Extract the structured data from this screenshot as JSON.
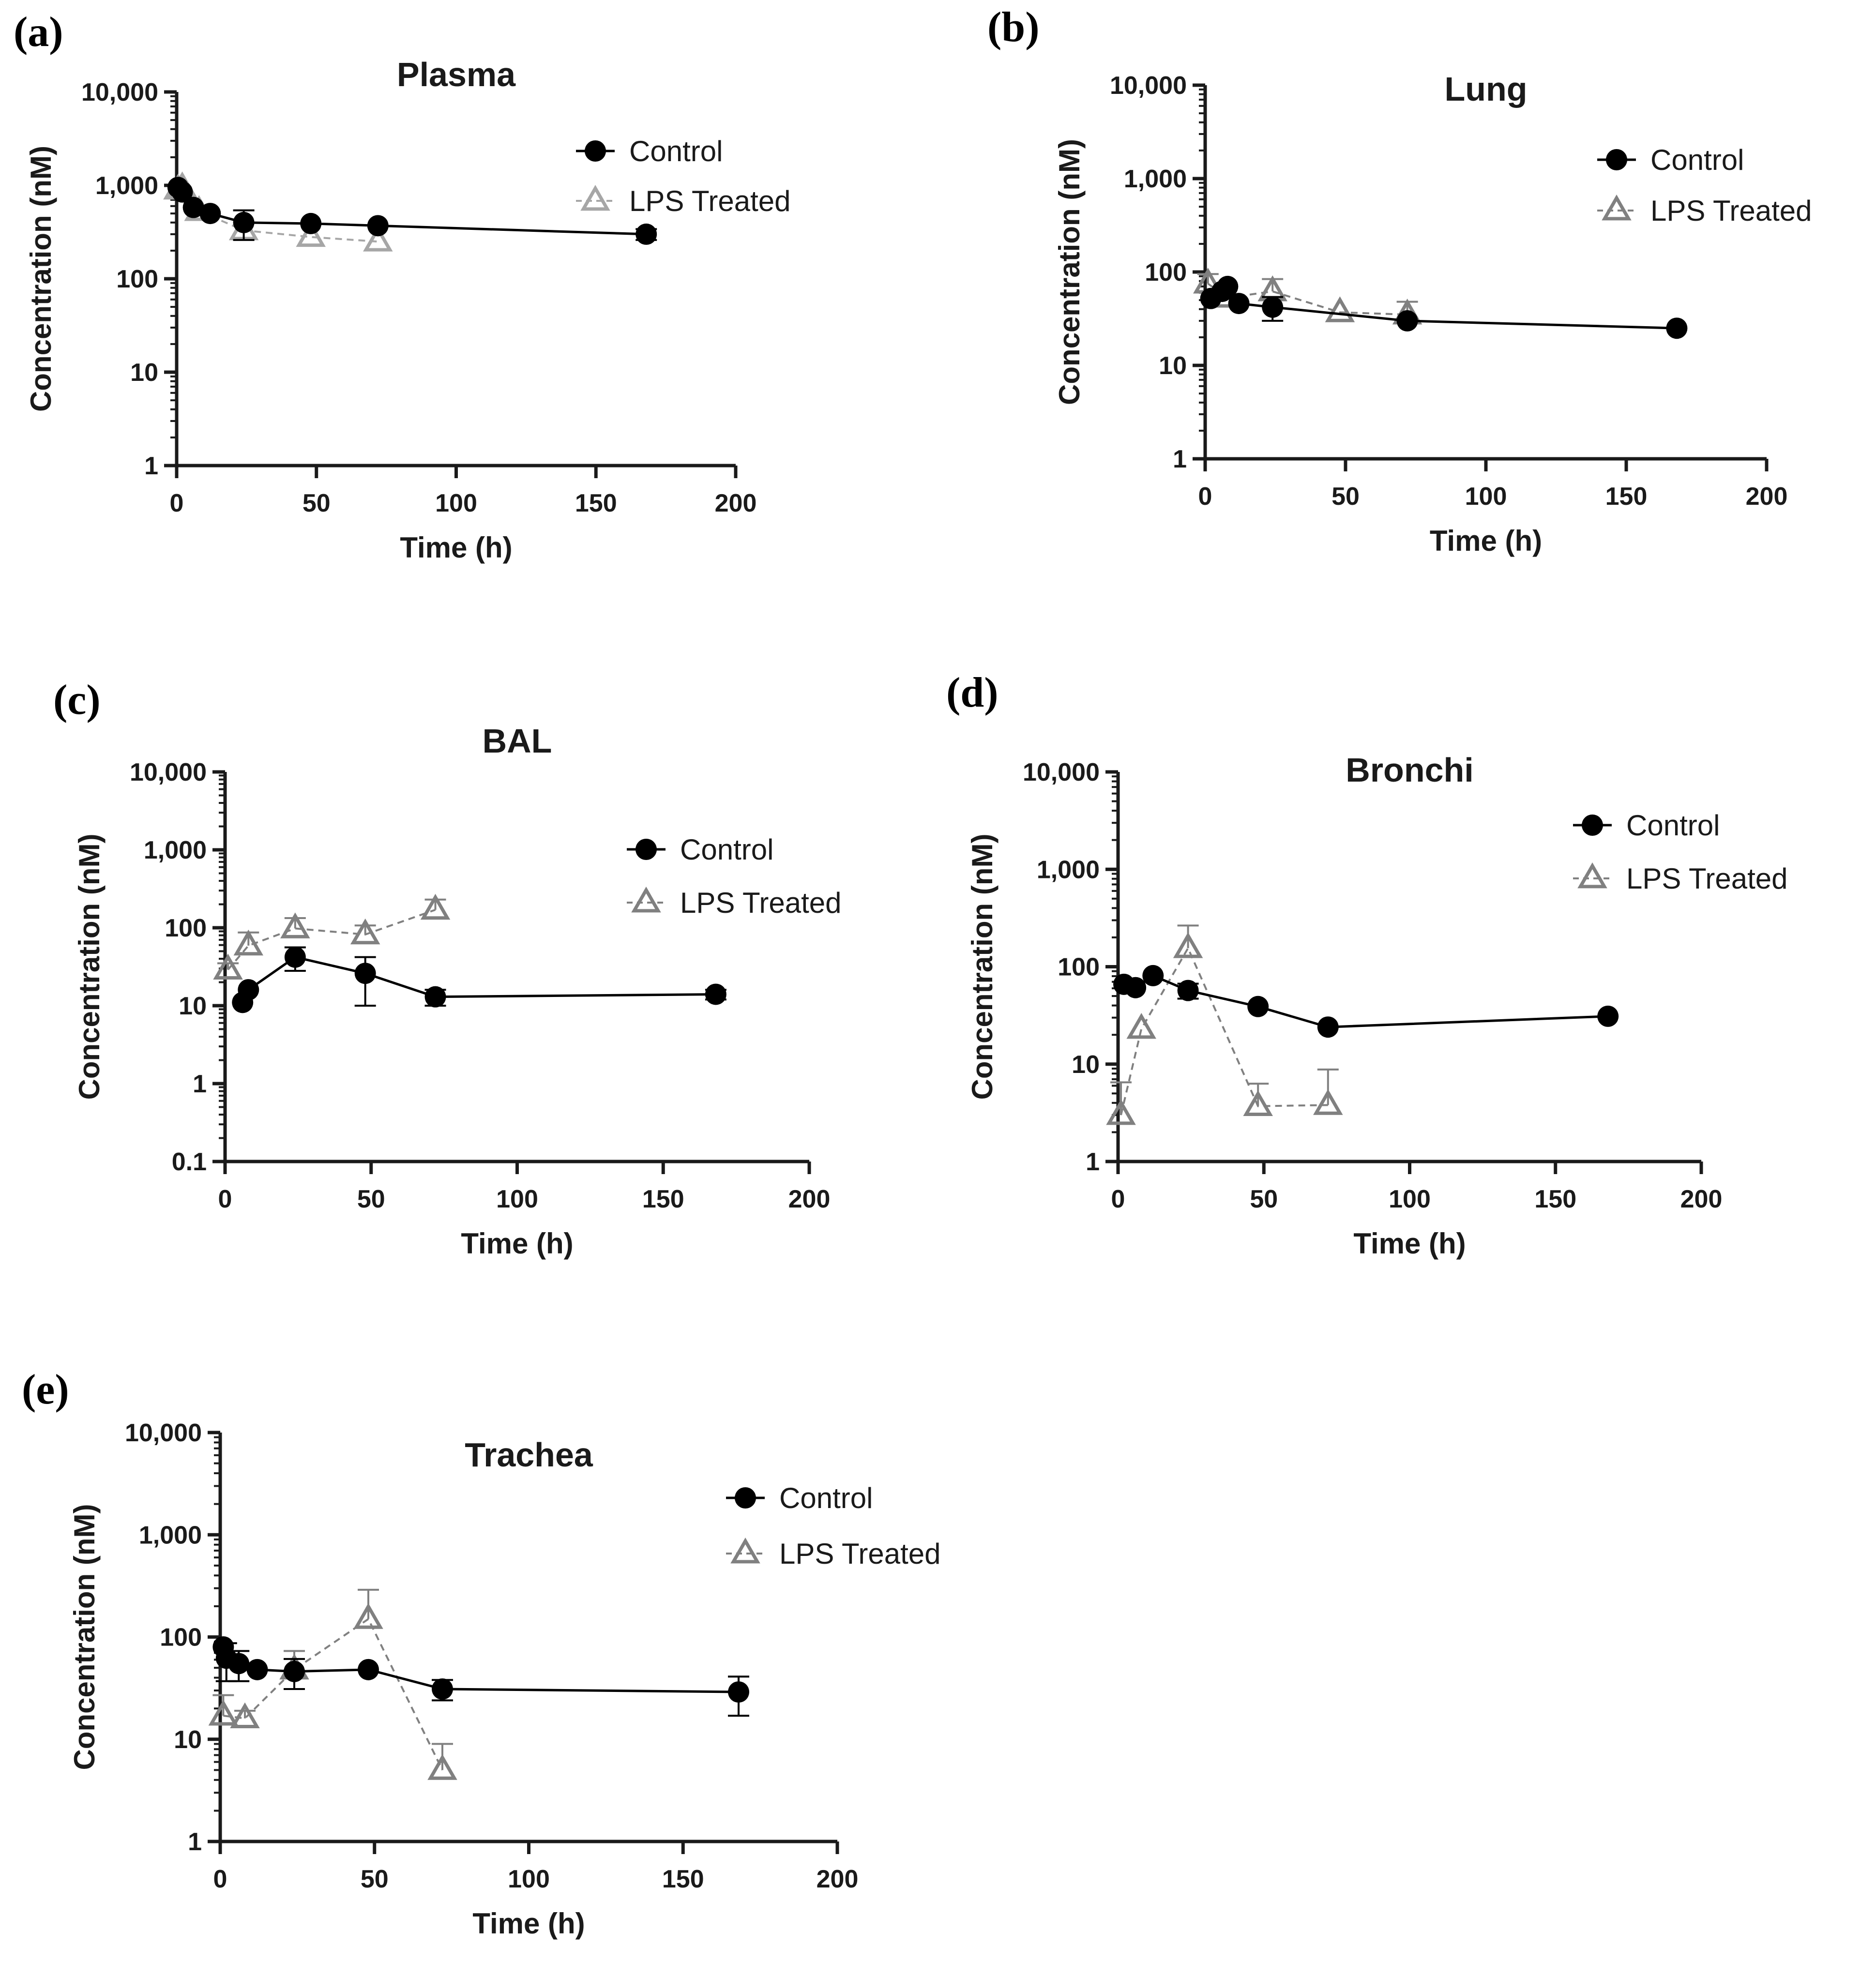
{
  "chart_data": [
    {
      "type": "line",
      "panel": "(a)",
      "title": "Plasma",
      "xlabel": "Time (h)",
      "ylabel": "Concentration (nM)",
      "xlim": [
        0,
        200
      ],
      "ylim": [
        1,
        10000
      ],
      "yscale": "log",
      "xticks": [
        0,
        50,
        100,
        150,
        200
      ],
      "yticks": [
        1,
        10,
        100,
        1000,
        10000
      ],
      "ytick_labels": [
        "1",
        "10",
        "100",
        "1,000",
        "10,000"
      ],
      "legend": "top-right",
      "series": [
        {
          "name": "Control",
          "color": "#000000",
          "marker": "circle",
          "line": "solid",
          "x": [
            0.5,
            2,
            6,
            12,
            24,
            48,
            72,
            168
          ],
          "y": [
            950,
            850,
            580,
            500,
            400,
            390,
            370,
            300
          ],
          "err": [
            0,
            0,
            0,
            0,
            140,
            0,
            0,
            40
          ]
        },
        {
          "name": "LPS Treated",
          "color": "#a6a6a6",
          "marker": "triangle",
          "line": "dashed",
          "x": [
            0.5,
            2,
            8,
            24,
            48,
            72
          ],
          "y": [
            900,
            950,
            530,
            330,
            280,
            250
          ],
          "err": [
            0,
            0,
            0,
            0,
            0,
            0
          ]
        }
      ]
    },
    {
      "type": "line",
      "panel": "(b)",
      "title": "Lung",
      "xlabel": "Time (h)",
      "ylabel": "Concentration (nM)",
      "xlim": [
        0,
        200
      ],
      "ylim": [
        1,
        10000
      ],
      "yscale": "log",
      "xticks": [
        0,
        50,
        100,
        150,
        200
      ],
      "yticks": [
        1,
        10,
        100,
        1000,
        10000
      ],
      "ytick_labels": [
        "1",
        "10",
        "100",
        "1,000",
        "10,000"
      ],
      "legend": "top-right",
      "series": [
        {
          "name": "Control",
          "color": "#000000",
          "marker": "circle",
          "line": "solid",
          "x": [
            2,
            6,
            8,
            12,
            24,
            72,
            168
          ],
          "y": [
            52,
            62,
            70,
            46,
            42,
            30,
            25
          ],
          "err": [
            0,
            0,
            0,
            0,
            12,
            0,
            0
          ]
        },
        {
          "name": "LPS Treated",
          "color": "#808080",
          "marker": "triangle",
          "line": "dashed",
          "x": [
            1,
            8,
            24,
            48,
            72
          ],
          "y": [
            75,
            53,
            62,
            37,
            35
          ],
          "err": [
            20,
            0,
            22,
            0,
            13
          ]
        }
      ]
    },
    {
      "type": "line",
      "panel": "(c)",
      "title": "BAL",
      "xlabel": "Time (h)",
      "ylabel": "Concentration (nM)",
      "xlim": [
        0,
        200
      ],
      "ylim": [
        0.1,
        10000
      ],
      "yscale": "log",
      "xticks": [
        0,
        50,
        100,
        150,
        200
      ],
      "yticks": [
        0.1,
        1,
        10,
        100,
        1000,
        10000
      ],
      "ytick_labels": [
        "0.1",
        "1",
        "10",
        "100",
        "1,000",
        "10,000"
      ],
      "legend": "top-right",
      "series": [
        {
          "name": "Control",
          "color": "#000000",
          "marker": "circle",
          "line": "solid",
          "x": [
            6,
            8,
            24,
            48,
            72,
            168
          ],
          "y": [
            11,
            16,
            42,
            26,
            13,
            14
          ],
          "err": [
            0,
            0,
            14,
            16,
            3,
            2
          ]
        },
        {
          "name": "LPS Treated",
          "color": "#808080",
          "marker": "triangle",
          "line": "dashed",
          "x": [
            1,
            8,
            24,
            48,
            72
          ],
          "y": [
            29,
            59,
            98,
            82,
            170
          ],
          "err": [
            6,
            28,
            35,
            25,
            60
          ]
        }
      ]
    },
    {
      "type": "line",
      "panel": "(d)",
      "title": "Bronchi",
      "xlabel": "Time (h)",
      "ylabel": "Concentration (nM)",
      "xlim": [
        0,
        200
      ],
      "ylim": [
        1,
        10000
      ],
      "yscale": "log",
      "xticks": [
        0,
        50,
        100,
        150,
        200
      ],
      "yticks": [
        1,
        10,
        100,
        1000,
        10000
      ],
      "ytick_labels": [
        "1",
        "10",
        "100",
        "1,000",
        "10,000"
      ],
      "legend": "top-right",
      "series": [
        {
          "name": "Control",
          "color": "#000000",
          "marker": "circle",
          "line": "solid",
          "x": [
            2,
            6,
            12,
            24,
            48,
            72,
            168
          ],
          "y": [
            66,
            61,
            81,
            57,
            39,
            24,
            31
          ],
          "err": [
            0,
            0,
            0,
            10,
            0,
            0,
            0
          ]
        },
        {
          "name": "LPS Treated",
          "color": "#808080",
          "marker": "triangle",
          "line": "dashed",
          "x": [
            1,
            8,
            24,
            48,
            72
          ],
          "y": [
            3,
            23,
            155,
            3.7,
            3.8
          ],
          "err": [
            3.5,
            0,
            110,
            2.6,
            5
          ]
        }
      ]
    },
    {
      "type": "line",
      "panel": "(e)",
      "title": "Trachea",
      "xlabel": "Time (h)",
      "ylabel": "Concentration (nM)",
      "xlim": [
        0,
        200
      ],
      "ylim": [
        1,
        10000
      ],
      "yscale": "log",
      "xticks": [
        0,
        50,
        100,
        150,
        200
      ],
      "yticks": [
        1,
        10,
        100,
        1000,
        10000
      ],
      "ytick_labels": [
        "1",
        "10",
        "100",
        "1,000",
        "10,000"
      ],
      "legend": "top-right",
      "series": [
        {
          "name": "Control",
          "color": "#000000",
          "marker": "circle",
          "line": "solid",
          "x": [
            1,
            2,
            6,
            12,
            24,
            48,
            72,
            168
          ],
          "y": [
            80,
            62,
            55,
            48,
            46,
            48,
            31,
            29
          ],
          "err": [
            0,
            25,
            18,
            0,
            15,
            0,
            7,
            12
          ]
        },
        {
          "name": "LPS Treated",
          "color": "#808080",
          "marker": "triangle",
          "line": "dashed",
          "x": [
            1,
            8,
            24,
            48,
            72
          ],
          "y": [
            17,
            16,
            48,
            150,
            5
          ],
          "err": [
            10,
            3,
            25,
            140,
            4
          ]
        }
      ]
    }
  ]
}
